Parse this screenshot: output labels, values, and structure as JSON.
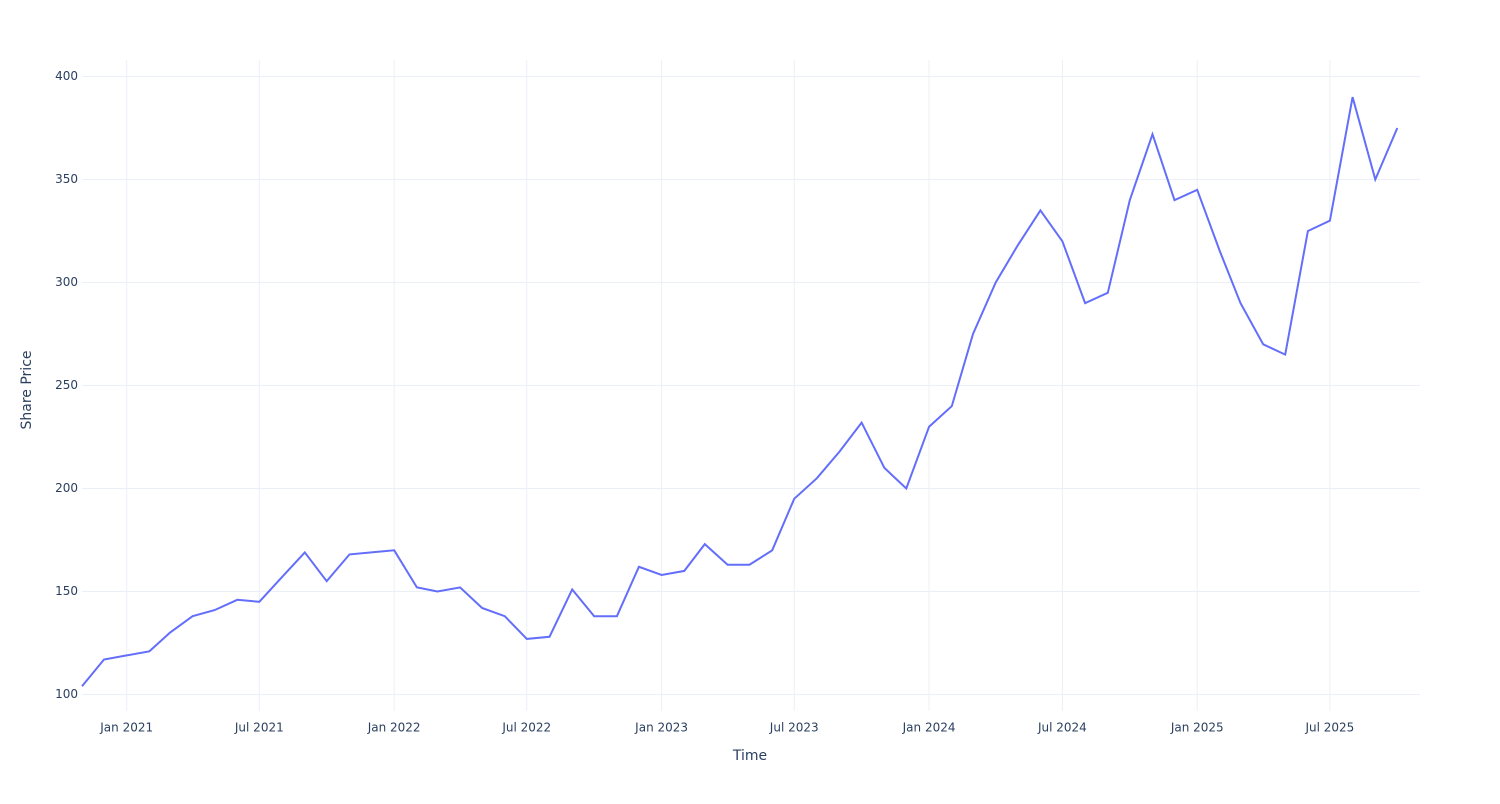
{
  "chart_data": {
    "type": "line",
    "x_label": "Time",
    "y_label": "Share Price",
    "x": [
      "2020-11",
      "2020-12",
      "2021-01",
      "2021-02",
      "2021-03",
      "2021-04",
      "2021-05",
      "2021-06",
      "2021-07",
      "2021-08",
      "2021-09",
      "2021-10",
      "2021-11",
      "2021-12",
      "2022-01",
      "2022-02",
      "2022-03",
      "2022-04",
      "2022-05",
      "2022-06",
      "2022-07",
      "2022-08",
      "2022-09",
      "2022-10",
      "2022-11",
      "2022-12",
      "2023-01",
      "2023-02",
      "2023-03",
      "2023-04",
      "2023-05",
      "2023-06",
      "2023-07",
      "2023-08",
      "2023-09",
      "2023-10",
      "2023-11",
      "2023-12",
      "2024-01",
      "2024-02",
      "2024-03",
      "2024-04",
      "2024-05",
      "2024-06",
      "2024-07",
      "2024-08",
      "2024-09",
      "2024-10",
      "2024-11",
      "2024-12",
      "2025-01",
      "2025-02",
      "2025-03",
      "2025-04",
      "2025-05",
      "2025-06",
      "2025-07",
      "2025-08",
      "2025-09",
      "2025-10"
    ],
    "series": [
      {
        "color": "#636efa",
        "values": [
          104,
          117,
          119,
          121,
          130,
          138,
          141,
          146,
          145,
          157,
          169,
          155,
          168,
          169,
          170,
          152,
          150,
          152,
          142,
          138,
          127,
          128,
          151,
          138,
          138,
          162,
          158,
          160,
          173,
          163,
          163,
          170,
          195,
          205,
          218,
          232,
          210,
          200,
          230,
          240,
          275,
          300,
          318,
          335,
          320,
          290,
          295,
          340,
          372,
          340,
          345,
          315,
          290,
          270,
          265,
          325,
          330,
          390,
          350,
          375
        ]
      }
    ],
    "xlim": [
      "2020-11",
      "2025-11"
    ],
    "xticks": [
      {
        "value": "2021-01",
        "label": "Jan 2021"
      },
      {
        "value": "2021-07",
        "label": "Jul 2021"
      },
      {
        "value": "2022-01",
        "label": "Jan 2022"
      },
      {
        "value": "2022-07",
        "label": "Jul 2022"
      },
      {
        "value": "2023-01",
        "label": "Jan 2023"
      },
      {
        "value": "2023-07",
        "label": "Jul 2023"
      },
      {
        "value": "2024-01",
        "label": "Jan 2024"
      },
      {
        "value": "2024-07",
        "label": "Jul 2024"
      },
      {
        "value": "2025-01",
        "label": "Jan 2025"
      },
      {
        "value": "2025-07",
        "label": "Jul 2025"
      }
    ],
    "ylim": [
      92,
      408
    ],
    "yticks": [
      100,
      150,
      200,
      250,
      300,
      350,
      400
    ],
    "grid": true
  }
}
